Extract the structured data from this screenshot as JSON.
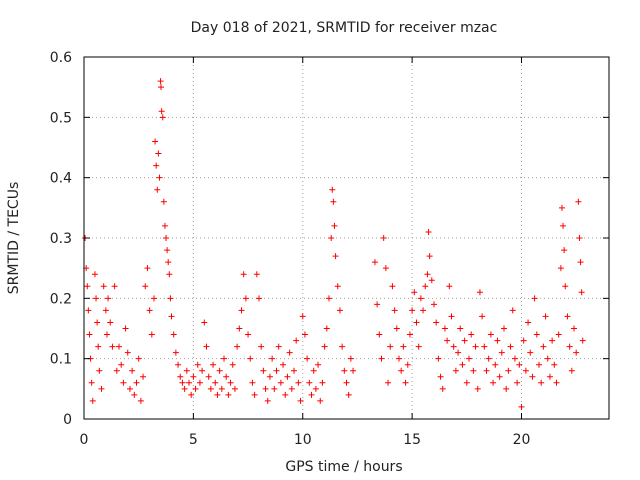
{
  "chart_data": {
    "type": "scatter",
    "title": "Day 018 of 2021, SRMTID for receiver mzac",
    "xlabel": "GPS time / hours",
    "ylabel": "SRMTID / TECUs",
    "xlim": [
      0,
      24
    ],
    "ylim": [
      0,
      0.6
    ],
    "grid": true,
    "marker": "+",
    "color": "#ff0000",
    "x_ticks": [
      {
        "value": 0,
        "label": "0"
      },
      {
        "value": 5,
        "label": "5"
      },
      {
        "value": 10,
        "label": "10"
      },
      {
        "value": 15,
        "label": "15"
      },
      {
        "value": 20,
        "label": "20"
      }
    ],
    "y_ticks": [
      {
        "value": 0,
        "label": "0"
      },
      {
        "value": 0.1,
        "label": "0.1"
      },
      {
        "value": 0.2,
        "label": "0.2"
      },
      {
        "value": 0.3,
        "label": "0.3"
      },
      {
        "value": 0.4,
        "label": "0.4"
      },
      {
        "value": 0.5,
        "label": "0.5"
      },
      {
        "value": 0.6,
        "label": "0.6"
      }
    ],
    "series": [
      {
        "name": "SRMTID",
        "points": [
          [
            0.05,
            0.3
          ],
          [
            0.1,
            0.25
          ],
          [
            0.15,
            0.22
          ],
          [
            0.2,
            0.18
          ],
          [
            0.25,
            0.14
          ],
          [
            0.3,
            0.1
          ],
          [
            0.35,
            0.06
          ],
          [
            0.4,
            0.03
          ],
          [
            0.5,
            0.24
          ],
          [
            0.55,
            0.2
          ],
          [
            0.6,
            0.16
          ],
          [
            0.65,
            0.12
          ],
          [
            0.7,
            0.08
          ],
          [
            0.8,
            0.05
          ],
          [
            0.9,
            0.22
          ],
          [
            1.0,
            0.18
          ],
          [
            1.05,
            0.14
          ],
          [
            1.1,
            0.2
          ],
          [
            1.2,
            0.16
          ],
          [
            1.3,
            0.12
          ],
          [
            1.4,
            0.22
          ],
          [
            1.5,
            0.08
          ],
          [
            1.6,
            0.12
          ],
          [
            1.7,
            0.09
          ],
          [
            1.8,
            0.06
          ],
          [
            1.9,
            0.15
          ],
          [
            2.0,
            0.11
          ],
          [
            2.1,
            0.05
          ],
          [
            2.2,
            0.08
          ],
          [
            2.3,
            0.04
          ],
          [
            2.4,
            0.06
          ],
          [
            2.5,
            0.1
          ],
          [
            2.6,
            0.03
          ],
          [
            2.7,
            0.07
          ],
          [
            2.8,
            0.22
          ],
          [
            2.9,
            0.25
          ],
          [
            3.0,
            0.18
          ],
          [
            3.1,
            0.14
          ],
          [
            3.2,
            0.2
          ],
          [
            3.25,
            0.46
          ],
          [
            3.3,
            0.42
          ],
          [
            3.35,
            0.38
          ],
          [
            3.4,
            0.44
          ],
          [
            3.45,
            0.4
          ],
          [
            3.5,
            0.56
          ],
          [
            3.52,
            0.55
          ],
          [
            3.55,
            0.51
          ],
          [
            3.6,
            0.5
          ],
          [
            3.65,
            0.36
          ],
          [
            3.7,
            0.32
          ],
          [
            3.75,
            0.3
          ],
          [
            3.8,
            0.28
          ],
          [
            3.85,
            0.26
          ],
          [
            3.9,
            0.24
          ],
          [
            3.95,
            0.2
          ],
          [
            4.0,
            0.17
          ],
          [
            4.1,
            0.14
          ],
          [
            4.2,
            0.11
          ],
          [
            4.3,
            0.09
          ],
          [
            4.4,
            0.07
          ],
          [
            4.5,
            0.06
          ],
          [
            4.6,
            0.05
          ],
          [
            4.7,
            0.08
          ],
          [
            4.8,
            0.06
          ],
          [
            4.9,
            0.04
          ],
          [
            5.0,
            0.07
          ],
          [
            5.1,
            0.05
          ],
          [
            5.2,
            0.09
          ],
          [
            5.3,
            0.06
          ],
          [
            5.4,
            0.08
          ],
          [
            5.5,
            0.16
          ],
          [
            5.6,
            0.12
          ],
          [
            5.7,
            0.07
          ],
          [
            5.8,
            0.05
          ],
          [
            5.9,
            0.09
          ],
          [
            6.0,
            0.06
          ],
          [
            6.1,
            0.04
          ],
          [
            6.2,
            0.08
          ],
          [
            6.3,
            0.05
          ],
          [
            6.4,
            0.1
          ],
          [
            6.5,
            0.07
          ],
          [
            6.6,
            0.04
          ],
          [
            6.7,
            0.06
          ],
          [
            6.8,
            0.09
          ],
          [
            6.9,
            0.05
          ],
          [
            7.0,
            0.12
          ],
          [
            7.1,
            0.15
          ],
          [
            7.2,
            0.18
          ],
          [
            7.3,
            0.24
          ],
          [
            7.4,
            0.2
          ],
          [
            7.5,
            0.14
          ],
          [
            7.6,
            0.1
          ],
          [
            7.7,
            0.06
          ],
          [
            7.8,
            0.04
          ],
          [
            7.9,
            0.24
          ],
          [
            8.0,
            0.2
          ],
          [
            8.1,
            0.12
          ],
          [
            8.2,
            0.08
          ],
          [
            8.3,
            0.05
          ],
          [
            8.4,
            0.03
          ],
          [
            8.5,
            0.07
          ],
          [
            8.6,
            0.1
          ],
          [
            8.7,
            0.05
          ],
          [
            8.8,
            0.08
          ],
          [
            8.9,
            0.12
          ],
          [
            9.0,
            0.06
          ],
          [
            9.1,
            0.09
          ],
          [
            9.2,
            0.04
          ],
          [
            9.3,
            0.07
          ],
          [
            9.4,
            0.11
          ],
          [
            9.5,
            0.05
          ],
          [
            9.6,
            0.08
          ],
          [
            9.7,
            0.13
          ],
          [
            9.8,
            0.06
          ],
          [
            9.9,
            0.03
          ],
          [
            10.0,
            0.17
          ],
          [
            10.1,
            0.14
          ],
          [
            10.2,
            0.1
          ],
          [
            10.3,
            0.06
          ],
          [
            10.4,
            0.04
          ],
          [
            10.5,
            0.08
          ],
          [
            10.6,
            0.05
          ],
          [
            10.7,
            0.09
          ],
          [
            10.8,
            0.03
          ],
          [
            10.9,
            0.06
          ],
          [
            11.0,
            0.12
          ],
          [
            11.1,
            0.15
          ],
          [
            11.2,
            0.2
          ],
          [
            11.3,
            0.3
          ],
          [
            11.35,
            0.38
          ],
          [
            11.4,
            0.36
          ],
          [
            11.45,
            0.32
          ],
          [
            11.5,
            0.27
          ],
          [
            11.6,
            0.22
          ],
          [
            11.7,
            0.18
          ],
          [
            11.8,
            0.12
          ],
          [
            11.9,
            0.08
          ],
          [
            12.0,
            0.06
          ],
          [
            12.1,
            0.04
          ],
          [
            12.2,
            0.1
          ],
          [
            12.3,
            0.08
          ],
          [
            13.3,
            0.26
          ],
          [
            13.4,
            0.19
          ],
          [
            13.5,
            0.14
          ],
          [
            13.6,
            0.1
          ],
          [
            13.7,
            0.3
          ],
          [
            13.8,
            0.25
          ],
          [
            13.9,
            0.06
          ],
          [
            14.0,
            0.12
          ],
          [
            14.1,
            0.22
          ],
          [
            14.2,
            0.18
          ],
          [
            14.3,
            0.15
          ],
          [
            14.4,
            0.1
          ],
          [
            14.5,
            0.08
          ],
          [
            14.6,
            0.12
          ],
          [
            14.7,
            0.06
          ],
          [
            14.8,
            0.09
          ],
          [
            14.9,
            0.14
          ],
          [
            15.0,
            0.18
          ],
          [
            15.1,
            0.21
          ],
          [
            15.2,
            0.16
          ],
          [
            15.3,
            0.12
          ],
          [
            15.4,
            0.2
          ],
          [
            15.5,
            0.18
          ],
          [
            15.6,
            0.22
          ],
          [
            15.7,
            0.24
          ],
          [
            15.75,
            0.31
          ],
          [
            15.8,
            0.27
          ],
          [
            15.9,
            0.23
          ],
          [
            16.0,
            0.19
          ],
          [
            16.1,
            0.16
          ],
          [
            16.2,
            0.1
          ],
          [
            16.3,
            0.07
          ],
          [
            16.4,
            0.05
          ],
          [
            16.5,
            0.15
          ],
          [
            16.6,
            0.13
          ],
          [
            16.7,
            0.22
          ],
          [
            16.8,
            0.17
          ],
          [
            16.9,
            0.12
          ],
          [
            17.0,
            0.08
          ],
          [
            17.1,
            0.11
          ],
          [
            17.2,
            0.15
          ],
          [
            17.3,
            0.09
          ],
          [
            17.4,
            0.13
          ],
          [
            17.5,
            0.06
          ],
          [
            17.6,
            0.1
          ],
          [
            17.7,
            0.14
          ],
          [
            17.8,
            0.08
          ],
          [
            17.9,
            0.12
          ],
          [
            18.0,
            0.05
          ],
          [
            18.1,
            0.21
          ],
          [
            18.2,
            0.17
          ],
          [
            18.3,
            0.12
          ],
          [
            18.4,
            0.08
          ],
          [
            18.5,
            0.1
          ],
          [
            18.6,
            0.14
          ],
          [
            18.7,
            0.06
          ],
          [
            18.8,
            0.09
          ],
          [
            18.9,
            0.13
          ],
          [
            19.0,
            0.07
          ],
          [
            19.1,
            0.11
          ],
          [
            19.2,
            0.15
          ],
          [
            19.3,
            0.05
          ],
          [
            19.4,
            0.08
          ],
          [
            19.5,
            0.12
          ],
          [
            19.6,
            0.18
          ],
          [
            19.7,
            0.1
          ],
          [
            19.8,
            0.06
          ],
          [
            19.9,
            0.09
          ],
          [
            20.0,
            0.02
          ],
          [
            20.1,
            0.13
          ],
          [
            20.2,
            0.08
          ],
          [
            20.3,
            0.16
          ],
          [
            20.4,
            0.11
          ],
          [
            20.5,
            0.07
          ],
          [
            20.6,
            0.2
          ],
          [
            20.7,
            0.14
          ],
          [
            20.8,
            0.09
          ],
          [
            20.9,
            0.06
          ],
          [
            21.0,
            0.12
          ],
          [
            21.1,
            0.17
          ],
          [
            21.2,
            0.1
          ],
          [
            21.3,
            0.07
          ],
          [
            21.4,
            0.13
          ],
          [
            21.5,
            0.09
          ],
          [
            21.6,
            0.06
          ],
          [
            21.7,
            0.14
          ],
          [
            21.8,
            0.25
          ],
          [
            21.85,
            0.35
          ],
          [
            21.9,
            0.32
          ],
          [
            21.95,
            0.28
          ],
          [
            22.0,
            0.22
          ],
          [
            22.1,
            0.17
          ],
          [
            22.2,
            0.12
          ],
          [
            22.3,
            0.08
          ],
          [
            22.4,
            0.15
          ],
          [
            22.5,
            0.11
          ],
          [
            22.6,
            0.36
          ],
          [
            22.65,
            0.3
          ],
          [
            22.7,
            0.26
          ],
          [
            22.75,
            0.21
          ],
          [
            22.8,
            0.13
          ]
        ]
      }
    ]
  }
}
